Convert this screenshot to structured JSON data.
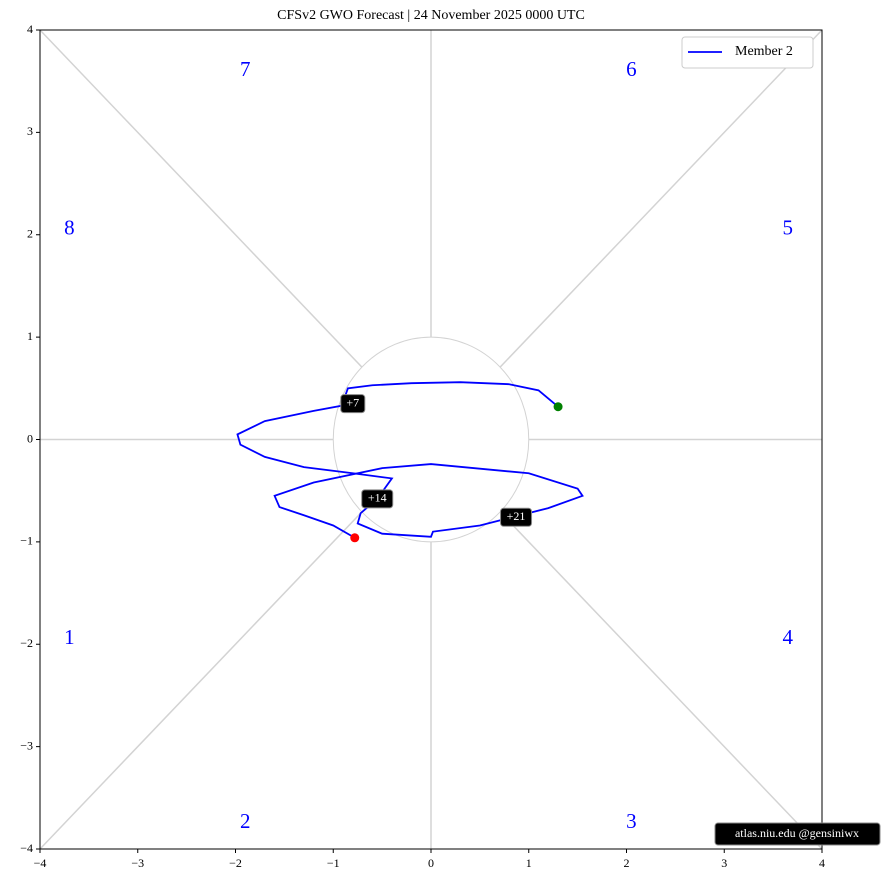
{
  "chart_data": {
    "type": "line",
    "title": "CFSv2 GWO Forecast   |   24  November  2025 0000 UTC",
    "series": [
      {
        "name": "Member 2",
        "color": "#0000ff",
        "x": [
          1.3,
          1.1,
          0.8,
          0.3,
          -0.2,
          -0.6,
          -0.85,
          -0.88,
          -0.8,
          -1.2,
          -1.7,
          -1.98,
          -1.95,
          -1.7,
          -1.3,
          -0.8,
          -0.4,
          -0.55,
          -0.72,
          -0.75,
          -0.5,
          0.0,
          0.02,
          0.5,
          1.2,
          1.55,
          1.5,
          1.0,
          0.0,
          -0.5,
          -1.2,
          -1.6,
          -1.55,
          -1.3,
          -1.0,
          -0.78
        ],
        "values": [
          0.32,
          0.48,
          0.54,
          0.56,
          0.55,
          0.53,
          0.5,
          0.42,
          0.35,
          0.28,
          0.18,
          0.05,
          -0.05,
          -0.17,
          -0.27,
          -0.33,
          -0.38,
          -0.58,
          -0.72,
          -0.82,
          -0.92,
          -0.95,
          -0.9,
          -0.84,
          -0.67,
          -0.55,
          -0.48,
          -0.33,
          -0.24,
          -0.28,
          -0.42,
          -0.55,
          -0.66,
          -0.74,
          -0.84,
          -0.96
        ]
      }
    ],
    "start_color": "#008000",
    "end_color": "#ff0000",
    "annotations": [
      {
        "label": "+7",
        "x": -0.8,
        "y": 0.35
      },
      {
        "label": "+14",
        "x": -0.55,
        "y": -0.58
      },
      {
        "label": "+21",
        "x": 0.87,
        "y": -0.76
      }
    ],
    "phase_labels": [
      "1",
      "2",
      "3",
      "4",
      "5",
      "6",
      "7",
      "8"
    ],
    "xlim": [
      -4,
      4
    ],
    "ylim": [
      -4,
      4
    ],
    "xticks": [
      {
        "value": -4,
        "label": "−4"
      },
      {
        "value": -3,
        "label": "−3"
      },
      {
        "value": -2,
        "label": "−2"
      },
      {
        "value": -1,
        "label": "−1"
      },
      0,
      1,
      2,
      3,
      4
    ],
    "yticks": [
      {
        "value": -4,
        "label": "−4"
      },
      {
        "value": -3,
        "label": "−3"
      },
      {
        "value": -2,
        "label": "−2"
      },
      {
        "value": -1,
        "label": "−1"
      },
      0,
      1,
      2,
      3,
      4
    ],
    "legend": "upper right",
    "credit": "atlas.niu.edu  @gensiniwx"
  }
}
